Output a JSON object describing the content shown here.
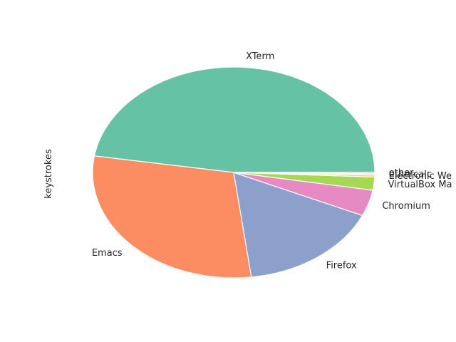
{
  "chart_data": {
    "type": "pie",
    "ylabel": "keystrokes",
    "start_angle_deg": 0,
    "direction": "counterclockwise",
    "labels": [
      "XTerm",
      "Emacs",
      "Firefox",
      "Chromium",
      "VirtualBox Ma",
      "Electronic We",
      "ethercalc",
      "other"
    ],
    "values": [
      47.5,
      29.5,
      16.3,
      4.0,
      2.0,
      0.3,
      0.2,
      0.2
    ],
    "colors": [
      "#66c2a5",
      "#fc8d62",
      "#8da0cb",
      "#e78ac3",
      "#a6d854",
      "#ffd92f",
      "#e5c494",
      "#b3b3b3"
    ]
  }
}
